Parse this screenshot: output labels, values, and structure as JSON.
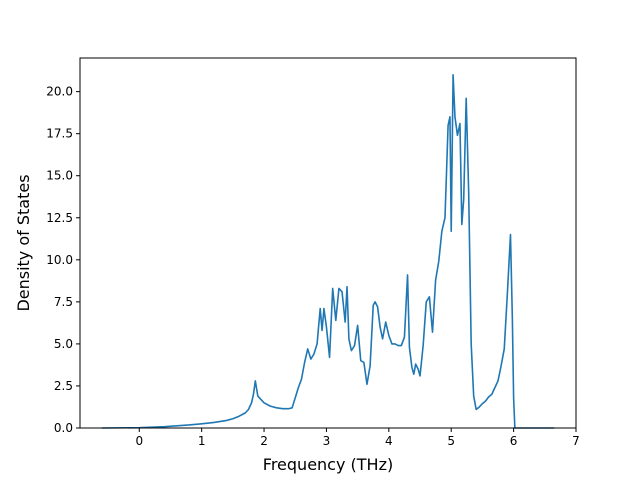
{
  "chart_data": {
    "type": "line",
    "title": "",
    "xlabel": "Frequency (THz)",
    "ylabel": "Density of States",
    "xlim": [
      -0.95,
      7.0
    ],
    "ylim": [
      0,
      22
    ],
    "xticks": [
      0,
      1,
      2,
      3,
      4,
      5,
      6,
      7
    ],
    "yticks": [
      0.0,
      2.5,
      5.0,
      7.5,
      10.0,
      12.5,
      15.0,
      17.5,
      20.0
    ],
    "xtick_labels": [
      "0",
      "1",
      "2",
      "3",
      "4",
      "5",
      "6",
      "7"
    ],
    "ytick_labels": [
      "0.0",
      "2.5",
      "5.0",
      "7.5",
      "10.0",
      "12.5",
      "15.0",
      "17.5",
      "20.0"
    ],
    "grid": false,
    "series": [
      {
        "color": "#1f77b4",
        "x": [
          -0.6,
          0.0,
          0.4,
          0.8,
          1.0,
          1.2,
          1.4,
          1.5,
          1.6,
          1.7,
          1.75,
          1.8,
          1.83,
          1.86,
          1.9,
          2.0,
          2.1,
          2.2,
          2.3,
          2.4,
          2.45,
          2.5,
          2.55,
          2.6,
          2.65,
          2.7,
          2.75,
          2.8,
          2.85,
          2.9,
          2.93,
          2.96,
          3.0,
          3.05,
          3.1,
          3.15,
          3.2,
          3.25,
          3.3,
          3.33,
          3.36,
          3.4,
          3.45,
          3.5,
          3.55,
          3.6,
          3.65,
          3.7,
          3.75,
          3.78,
          3.82,
          3.86,
          3.9,
          3.95,
          4.0,
          4.05,
          4.1,
          4.15,
          4.2,
          4.25,
          4.3,
          4.33,
          4.37,
          4.4,
          4.43,
          4.47,
          4.5,
          4.55,
          4.6,
          4.65,
          4.7,
          4.75,
          4.8,
          4.85,
          4.9,
          4.95,
          4.98,
          5.0,
          5.03,
          5.06,
          5.1,
          5.14,
          5.17,
          5.2,
          5.24,
          5.28,
          5.32,
          5.36,
          5.4,
          5.45,
          5.5,
          5.55,
          5.6,
          5.65,
          5.7,
          5.75,
          5.8,
          5.85,
          5.9,
          5.95,
          5.98,
          6.0,
          6.02,
          6.05,
          6.1,
          6.2,
          6.65
        ],
        "y": [
          0.0,
          0.02,
          0.08,
          0.18,
          0.25,
          0.33,
          0.45,
          0.55,
          0.7,
          0.9,
          1.1,
          1.5,
          2.0,
          2.8,
          1.9,
          1.5,
          1.3,
          1.2,
          1.15,
          1.15,
          1.2,
          1.8,
          2.4,
          2.9,
          3.9,
          4.7,
          4.1,
          4.4,
          5.0,
          7.1,
          5.8,
          7.1,
          6.0,
          4.2,
          8.3,
          6.4,
          8.3,
          8.1,
          6.3,
          8.4,
          5.3,
          4.6,
          4.9,
          6.1,
          4.0,
          3.9,
          2.6,
          3.7,
          7.3,
          7.5,
          7.2,
          6.0,
          5.3,
          6.3,
          5.5,
          5.0,
          5.0,
          4.9,
          4.9,
          5.4,
          9.1,
          4.8,
          3.6,
          3.2,
          3.8,
          3.5,
          3.1,
          4.9,
          7.5,
          7.8,
          5.7,
          8.8,
          9.9,
          11.7,
          12.5,
          18.0,
          18.5,
          11.7,
          21.0,
          18.5,
          17.4,
          18.1,
          12.1,
          13.6,
          19.6,
          14.0,
          5.0,
          1.9,
          1.1,
          1.25,
          1.45,
          1.6,
          1.85,
          2.0,
          2.4,
          2.8,
          3.7,
          4.7,
          8.0,
          11.5,
          6.5,
          1.8,
          0.0,
          0.0,
          0.0,
          0.0,
          0.0
        ]
      }
    ]
  }
}
